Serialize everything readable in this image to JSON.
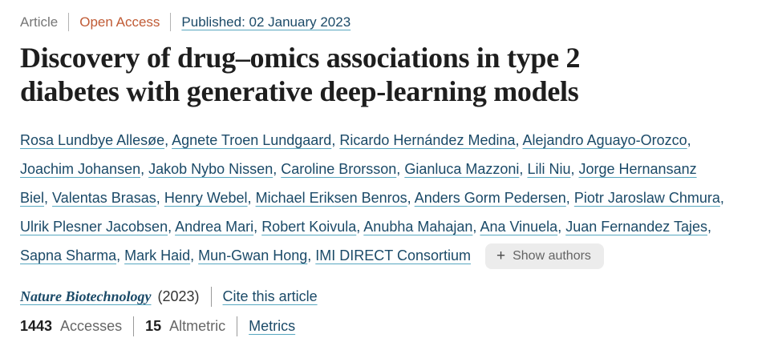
{
  "meta": {
    "article_type": "Article",
    "access": "Open Access",
    "published": "Published: 02 January 2023"
  },
  "title": "Discovery of drug–omics associations in type 2 diabetes with generative deep-learning models",
  "authors": {
    "lines": [
      [
        "Rosa Lundbye Allesøe,",
        "Agnete Troen Lundgaard,",
        "Ricardo Hernández Medina,",
        "Alejandro Aguayo-Orozco,"
      ],
      [
        "Joachim Johansen,",
        "Jakob Nybo Nissen,",
        "Caroline Brorsson,",
        "Gianluca Mazzoni,",
        "Lili Niu,",
        "Jorge Hernansanz"
      ],
      [
        "Biel,",
        "Valentas Brasas,",
        "Henry Webel,",
        "Michael Eriksen Benros,",
        "Anders Gorm Pedersen,",
        "Piotr Jaroslaw Chmura,"
      ],
      [
        "Ulrik Plesner Jacobsen,",
        "Andrea Mari,",
        "Robert Koivula,",
        "Anubha Mahajan,",
        "Ana Vinuela,",
        "Juan Fernandez Tajes,"
      ],
      [
        "Sapna Sharma,",
        "Mark Haid,",
        "Mun-Gwan Hong,",
        "IMI DIRECT Consortium"
      ]
    ],
    "show_authors": "Show authors",
    "plus_icon": "+"
  },
  "journal": {
    "name": "Nature Biotechnology",
    "year": "(2023)",
    "cite": "Cite this article"
  },
  "metrics": {
    "accesses_value": "1443",
    "accesses_label": "Accesses",
    "altmetric_value": "15",
    "altmetric_label": "Altmetric",
    "metrics_link": "Metrics"
  },
  "colors": {
    "link_text": "#1b4a68",
    "link_underline": "#57a7c0",
    "open_access": "#c05b35",
    "title_text": "#1e1e1e",
    "button_bg": "#ececec",
    "button_text": "#646464"
  }
}
